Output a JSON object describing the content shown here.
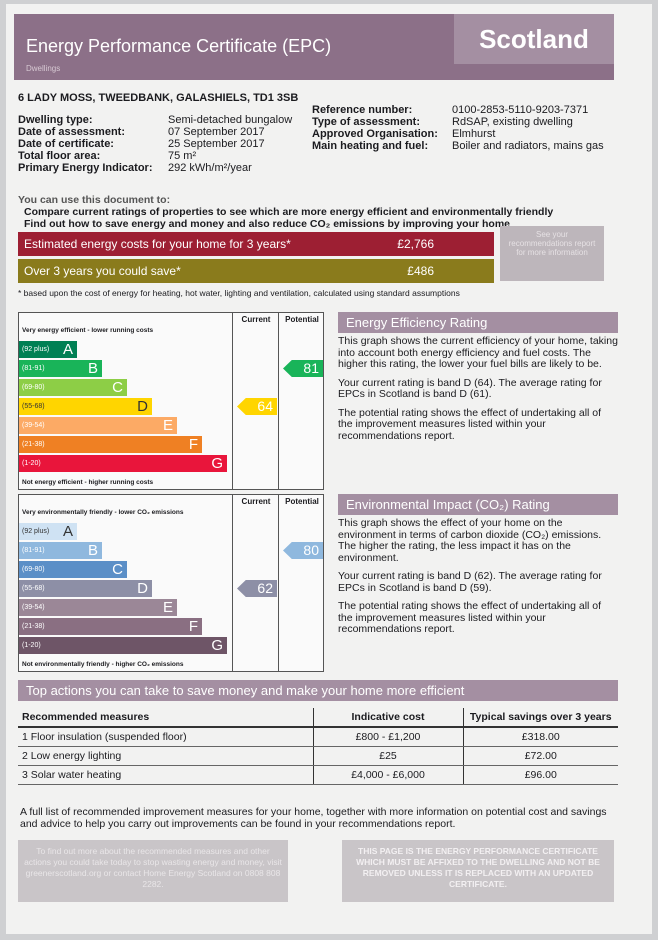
{
  "header": {
    "title": "Energy Performance Certificate (EPC)",
    "country": "Scotland",
    "subtitle": "Dwellings"
  },
  "address": "6 LADY MOSS, TWEEDBANK, GALASHIELS, TD1 3SB",
  "details": [
    {
      "label": "Dwelling type:",
      "value": "Semi-detached bungalow"
    },
    {
      "label": "Date of assessment:",
      "value": "07 September 2017"
    },
    {
      "label": "Date of certificate:",
      "value": "25 September 2017"
    },
    {
      "label": "Total floor area:",
      "value": "75 m²"
    },
    {
      "label": "Primary Energy Indicator:",
      "value": "292 kWh/m²/year"
    }
  ],
  "reference": [
    {
      "label": "Reference number:",
      "value": "0100-2853-5110-9203-7371"
    },
    {
      "label": "Type of assessment:",
      "value": "RdSAP, existing dwelling"
    },
    {
      "label": "Approved Organisation:",
      "value": "Elmhurst"
    },
    {
      "label": "Main heating and fuel:",
      "value": "Boiler and radiators, mains gas"
    }
  ],
  "uses": {
    "intro": "You can use this document to:",
    "items": [
      "Compare current ratings of properties to see which are more energy efficient and environmentally friendly",
      "Find out how to save energy and money and also reduce CO₂ emissions by improving your home"
    ]
  },
  "costs": {
    "rows": [
      {
        "label": "Estimated energy costs for your home for 3 years*",
        "value": "£2,766"
      },
      {
        "label": "Over 3 years you could save*",
        "value": "£486"
      }
    ],
    "note_box": "See your recommendations report for more information",
    "footnote": "* based upon the cost of energy for heating, hot water, lighting and ventilation, calculated using standard assumptions"
  },
  "energy_rating": {
    "title": "Energy Efficiency Rating",
    "col_current": "Current",
    "col_potential": "Potential",
    "top_label": "Very energy efficient - lower running costs",
    "bottom_label": "Not energy efficient - higher running costs",
    "bands": [
      {
        "range": "(92 plus)",
        "letter": "A"
      },
      {
        "range": "(81-91)",
        "letter": "B"
      },
      {
        "range": "(69-80)",
        "letter": "C"
      },
      {
        "range": "(55-68)",
        "letter": "D"
      },
      {
        "range": "(39-54)",
        "letter": "E"
      },
      {
        "range": "(21-38)",
        "letter": "F"
      },
      {
        "range": "(1-20)",
        "letter": "G"
      }
    ],
    "current": 64,
    "potential": 81,
    "paragraphs": [
      "This graph shows the current efficiency of your home, taking into account both energy efficiency and fuel costs. The higher this rating, the lower your fuel bills are likely to be.",
      "Your current rating is band D (64). The average rating for EPCs in Scotland is band D (61).",
      "The potential rating shows the effect of undertaking all of the improvement measures listed within your recommendations report."
    ]
  },
  "environmental_rating": {
    "title": "Environmental Impact (CO₂) Rating",
    "col_current": "Current",
    "col_potential": "Potential",
    "top_label": "Very environmentally friendly - lower CO₂ emissions",
    "bottom_label": "Not environmentally friendly - higher CO₂ emissions",
    "bands": [
      {
        "range": "(92 plus)",
        "letter": "A"
      },
      {
        "range": "(81-91)",
        "letter": "B"
      },
      {
        "range": "(69-80)",
        "letter": "C"
      },
      {
        "range": "(55-68)",
        "letter": "D"
      },
      {
        "range": "(39-54)",
        "letter": "E"
      },
      {
        "range": "(21-38)",
        "letter": "F"
      },
      {
        "range": "(1-20)",
        "letter": "G"
      }
    ],
    "current": 62,
    "potential": 80,
    "paragraphs": [
      "This graph shows the effect of your home on the environment in terms of carbon dioxide (CO₂) emissions. The higher the rating, the less impact it has on the environment.",
      "Your current rating is band D (62). The average rating for EPCs in Scotland is band D (59).",
      "The potential rating shows the effect of undertaking all of the improvement measures listed within your recommendations report."
    ]
  },
  "actions": {
    "title": "Top actions you can take to save money and make your home more efficient",
    "headers": [
      "Recommended measures",
      "Indicative cost",
      "Typical savings over 3 years"
    ],
    "rows": [
      [
        "1 Floor insulation (suspended floor)",
        "£800 - £1,200",
        "£318.00"
      ],
      [
        "2 Low energy lighting",
        "£25",
        "£72.00"
      ],
      [
        "3 Solar water heating",
        "£4,000 - £6,000",
        "£96.00"
      ]
    ],
    "note": "A full list of recommended improvement measures for your home, together with more information on potential cost and savings and advice to help you carry out improvements can be found in your recommendations report."
  },
  "footer": {
    "advice": "To find out more about the recommended measures and other actions you could take today to stop wasting energy and money, visit greenerscotland.org or contact Home Energy Scotland on 0808 808 2282.",
    "notice": "THIS PAGE IS THE ENERGY PERFORMANCE CERTIFICATE WHICH MUST BE AFFIXED TO THE DWELLING AND NOT BE REMOVED UNLESS IT IS REPLACED WITH AN UPDATED CERTIFICATE."
  }
}
